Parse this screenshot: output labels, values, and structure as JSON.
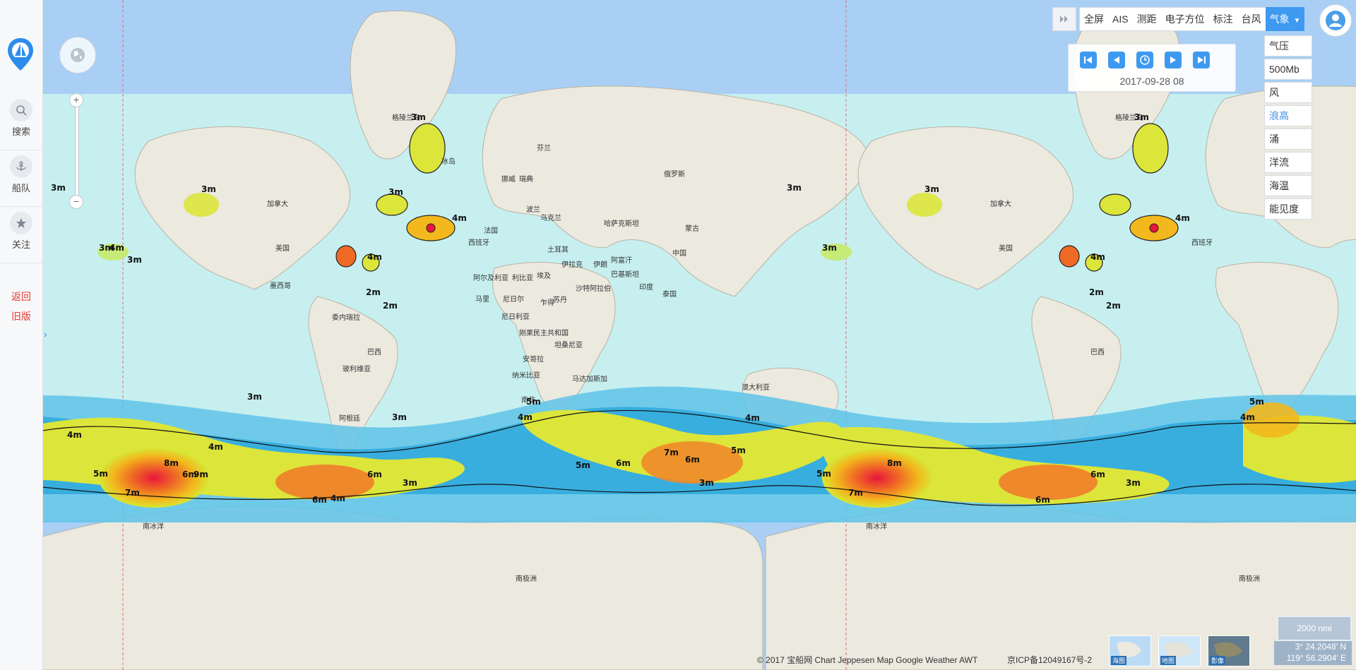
{
  "sidebar": {
    "logo": "sailboat-logo",
    "items": [
      {
        "label": "搜索",
        "icon": "search-icon"
      },
      {
        "label": "船队",
        "icon": "anchor-icon"
      },
      {
        "label": "关注",
        "icon": "star-icon"
      }
    ],
    "back_line1": "返回",
    "back_line2": "旧版"
  },
  "toolbar": {
    "items": [
      "全屏",
      "AIS",
      "测距",
      "电子方位",
      "标注",
      "台风",
      "气象"
    ],
    "active": "气象"
  },
  "weather_menu": {
    "items": [
      "气压",
      "500Mb",
      "风",
      "浪高",
      "涌",
      "洋流",
      "海温",
      "能见度"
    ],
    "selected": "浪高"
  },
  "player": {
    "time": "2017-09-28 08"
  },
  "map": {
    "layer": "wave-height",
    "labels": [
      "格陵兰岛",
      "冰岛",
      "加拿大",
      "美国",
      "墨西哥",
      "委内瑞拉",
      "巴西",
      "玻利维亚",
      "阿根廷",
      "俄罗斯",
      "芬兰",
      "挪威",
      "瑞典",
      "波兰",
      "乌克兰",
      "法国",
      "西班牙",
      "土耳其",
      "伊拉克",
      "伊朗",
      "阿富汗",
      "巴基斯坦",
      "哈萨克斯坦",
      "蒙古",
      "中国",
      "印度",
      "泰国",
      "阿尔及利亚",
      "利比亚",
      "埃及",
      "马里",
      "尼日尔",
      "乍得",
      "苏丹",
      "尼日利亚",
      "刚果民主共和国",
      "坦桑尼亚",
      "安哥拉",
      "纳米比亚",
      "南非",
      "马达加斯加",
      "沙特阿拉伯",
      "澳大利亚",
      "南冰洋",
      "南极洲"
    ],
    "contour_labels": [
      "2m",
      "3m",
      "4m",
      "5m",
      "6m",
      "7m",
      "8m",
      "9m"
    ]
  },
  "footer": {
    "copyright": "© 2017 宝船网 Chart Jeppesen Map Google Weather AWT",
    "icp": "京ICP备12049167号-2",
    "basemaps": [
      "海图",
      "地图",
      "影像"
    ]
  },
  "scale": "2000 nmi",
  "coords": {
    "lat": "3° 24.2048′ N",
    "lon": "119° 56.2904′ E"
  },
  "colors": {
    "accent": "#3e9af0",
    "ocean": "#a9cff4",
    "back_link": "#e53d36"
  }
}
